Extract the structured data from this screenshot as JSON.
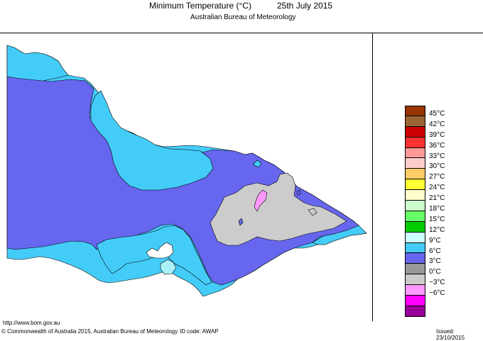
{
  "header": {
    "title": "Minimum Temperature (°C)",
    "date": "25th July 2015",
    "subtitle": "Australian Bureau of Meteorology"
  },
  "map": {
    "region": "Victoria",
    "colors": {
      "cyan_9C": "#44ccf8",
      "blue_6C": "#6666ee",
      "grey_0C": "#cccccc",
      "pink_minus3C": "#ff99ff",
      "light_cyan_12C": "#aaf0f8"
    }
  },
  "legend": {
    "items": [
      {
        "label": "45°C",
        "color": "#993300"
      },
      {
        "label": "42°C",
        "color": "#996633"
      },
      {
        "label": "39°C",
        "color": "#cc0000"
      },
      {
        "label": "36°C",
        "color": "#ff3333"
      },
      {
        "label": "33°C",
        "color": "#ff9999"
      },
      {
        "label": "30°C",
        "color": "#ffcccc"
      },
      {
        "label": "27°C",
        "color": "#ffcc66"
      },
      {
        "label": "24°C",
        "color": "#ffff33"
      },
      {
        "label": "21°C",
        "color": "#ffffcc"
      },
      {
        "label": "18°C",
        "color": "#ccffcc"
      },
      {
        "label": "15°C",
        "color": "#66ff66"
      },
      {
        "label": "12°C",
        "color": "#00cc00"
      },
      {
        "label": "9°C",
        "color": "#ccffff"
      },
      {
        "label": "6°C",
        "color": "#44ccf8"
      },
      {
        "label": "3°C",
        "color": "#6666ee"
      },
      {
        "label": "0°C",
        "color": "#999999"
      },
      {
        "label": "−3°C",
        "color": "#cccccc"
      },
      {
        "label": "−6°C",
        "color": "#ff99ff"
      },
      {
        "label": "",
        "color": "#ff00ff"
      },
      {
        "label": "",
        "color": "#990099"
      }
    ]
  },
  "footer": {
    "url": "http://www.bom.gov.au",
    "copyright": "© Commonwealth of Australia 2015, Australian Bureau of Meteorology",
    "id_code": "ID code: AWAP",
    "issued": "Issued: 23/10/2015"
  }
}
